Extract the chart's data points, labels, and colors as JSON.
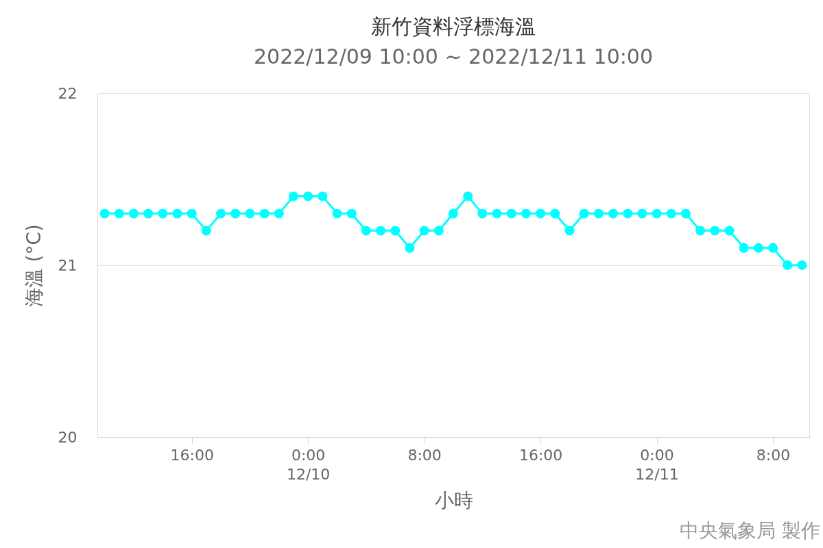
{
  "chart_data": {
    "type": "line",
    "title": "新竹資料浮標海溫",
    "subtitle": "2022/12/09 10:00 ~ 2022/12/11 10:00",
    "xlabel": "小時",
    "ylabel": "海溫 (°C)",
    "x": [
      "2022-12-09T10:00",
      "2022-12-09T11:00",
      "2022-12-09T12:00",
      "2022-12-09T13:00",
      "2022-12-09T14:00",
      "2022-12-09T15:00",
      "2022-12-09T16:00",
      "2022-12-09T17:00",
      "2022-12-09T18:00",
      "2022-12-09T19:00",
      "2022-12-09T20:00",
      "2022-12-09T21:00",
      "2022-12-09T22:00",
      "2022-12-09T23:00",
      "2022-12-10T00:00",
      "2022-12-10T01:00",
      "2022-12-10T02:00",
      "2022-12-10T03:00",
      "2022-12-10T04:00",
      "2022-12-10T05:00",
      "2022-12-10T06:00",
      "2022-12-10T07:00",
      "2022-12-10T08:00",
      "2022-12-10T09:00",
      "2022-12-10T10:00",
      "2022-12-10T11:00",
      "2022-12-10T12:00",
      "2022-12-10T13:00",
      "2022-12-10T14:00",
      "2022-12-10T15:00",
      "2022-12-10T16:00",
      "2022-12-10T17:00",
      "2022-12-10T18:00",
      "2022-12-10T19:00",
      "2022-12-10T20:00",
      "2022-12-10T21:00",
      "2022-12-10T22:00",
      "2022-12-10T23:00",
      "2022-12-11T00:00",
      "2022-12-11T01:00",
      "2022-12-11T02:00",
      "2022-12-11T03:00",
      "2022-12-11T04:00",
      "2022-12-11T05:00",
      "2022-12-11T06:00",
      "2022-12-11T07:00",
      "2022-12-11T08:00",
      "2022-12-11T09:00",
      "2022-12-11T10:00"
    ],
    "series": [
      {
        "color": "#00ffff",
        "values": [
          21.3,
          21.3,
          21.3,
          21.3,
          21.3,
          21.3,
          21.3,
          21.2,
          21.3,
          21.3,
          21.3,
          21.3,
          21.3,
          21.4,
          21.4,
          21.4,
          21.3,
          21.3,
          21.2,
          21.2,
          21.2,
          21.1,
          21.2,
          21.2,
          21.3,
          21.4,
          21.3,
          21.3,
          21.3,
          21.3,
          21.3,
          21.3,
          21.2,
          21.3,
          21.3,
          21.3,
          21.3,
          21.3,
          21.3,
          21.3,
          21.3,
          21.2,
          21.2,
          21.2,
          21.1,
          21.1,
          21.1,
          21.0,
          21.0
        ]
      }
    ],
    "xlim": [
      "2022-12-09T09:30",
      "2022-12-11T10:30"
    ],
    "xticks": [
      {
        "value": "2022-12-09T16:00",
        "label": "16:00"
      },
      {
        "value": "2022-12-10T00:00",
        "label": "0:00\n12/10"
      },
      {
        "value": "2022-12-10T08:00",
        "label": "8:00"
      },
      {
        "value": "2022-12-10T16:00",
        "label": "16:00"
      },
      {
        "value": "2022-12-11T00:00",
        "label": "0:00\n12/11"
      },
      {
        "value": "2022-12-11T08:00",
        "label": "8:00"
      }
    ],
    "ylim": [
      20,
      22
    ],
    "yticks": [
      20,
      21,
      22
    ],
    "grid": "y",
    "legend": false,
    "marker": "circle",
    "line_style": "solid",
    "annotations": [
      "中央氣象局 製作"
    ]
  }
}
